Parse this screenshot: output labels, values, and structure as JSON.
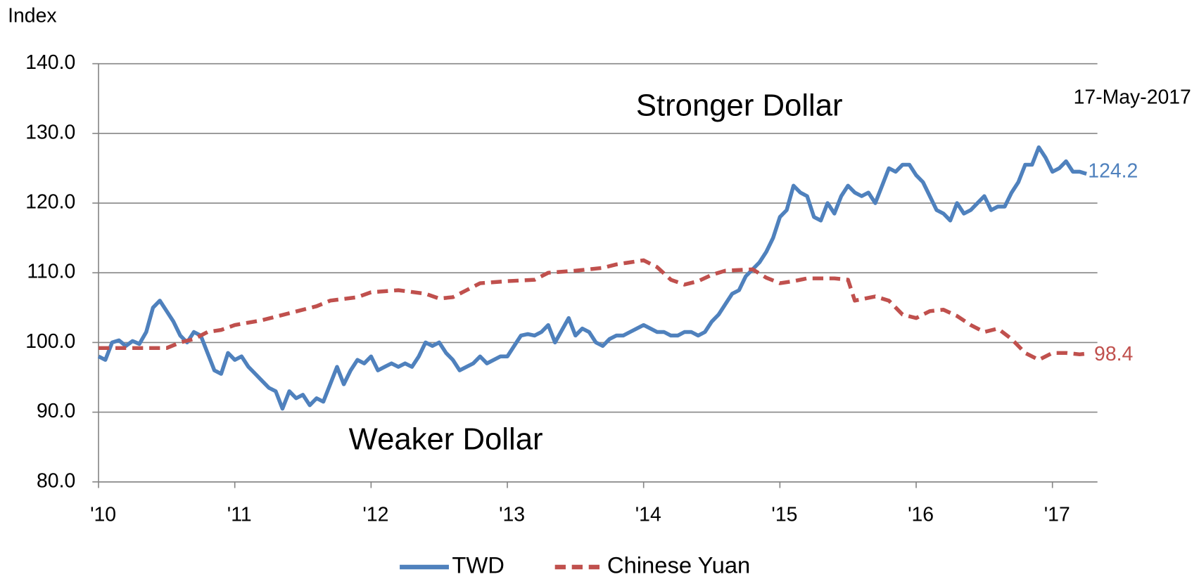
{
  "chart_data": {
    "type": "line",
    "y_label": "Index",
    "annotations": [
      "17-May-2017",
      "Stronger Dollar",
      "Weaker Dollar"
    ],
    "xlim": [
      2010,
      2017.33
    ],
    "xticks": [
      {
        "value": 2010,
        "label": "'10"
      },
      {
        "value": 2011,
        "label": "'11"
      },
      {
        "value": 2012,
        "label": "'12"
      },
      {
        "value": 2013,
        "label": "'13"
      },
      {
        "value": 2014,
        "label": "'14"
      },
      {
        "value": 2015,
        "label": "'15"
      },
      {
        "value": 2016,
        "label": "'16"
      },
      {
        "value": 2017,
        "label": "'17"
      }
    ],
    "ylim": [
      80,
      140
    ],
    "yticks": [
      {
        "value": 80,
        "label": "80.0"
      },
      {
        "value": 90,
        "label": "90.0"
      },
      {
        "value": 100,
        "label": "100.0"
      },
      {
        "value": 110,
        "label": "110.0"
      },
      {
        "value": 120,
        "label": "120.0"
      },
      {
        "value": 130,
        "label": "130.0"
      },
      {
        "value": 140,
        "label": "140.0"
      }
    ],
    "grid": true,
    "legend": "bottom",
    "series": [
      {
        "name": "TWD",
        "color": "#4f81bd",
        "dash": false,
        "x": [
          2010.0,
          2010.05,
          2010.1,
          2010.15,
          2010.2,
          2010.25,
          2010.3,
          2010.35,
          2010.4,
          2010.45,
          2010.5,
          2010.55,
          2010.6,
          2010.65,
          2010.7,
          2010.75,
          2010.8,
          2010.85,
          2010.9,
          2010.95,
          2011.0,
          2011.05,
          2011.1,
          2011.15,
          2011.2,
          2011.25,
          2011.3,
          2011.35,
          2011.4,
          2011.45,
          2011.5,
          2011.55,
          2011.6,
          2011.65,
          2011.7,
          2011.75,
          2011.8,
          2011.85,
          2011.9,
          2011.95,
          2012.0,
          2012.05,
          2012.1,
          2012.15,
          2012.2,
          2012.25,
          2012.3,
          2012.35,
          2012.4,
          2012.45,
          2012.5,
          2012.55,
          2012.6,
          2012.65,
          2012.7,
          2012.75,
          2012.8,
          2012.85,
          2012.9,
          2012.95,
          2013.0,
          2013.05,
          2013.1,
          2013.15,
          2013.2,
          2013.25,
          2013.3,
          2013.35,
          2013.45,
          2013.5,
          2013.55,
          2013.6,
          2013.65,
          2013.7,
          2013.75,
          2013.8,
          2013.85,
          2013.9,
          2013.95,
          2014.0,
          2014.05,
          2014.1,
          2014.15,
          2014.2,
          2014.25,
          2014.3,
          2014.35,
          2014.4,
          2014.45,
          2014.5,
          2014.55,
          2014.6,
          2014.65,
          2014.7,
          2014.75,
          2014.8,
          2014.85,
          2014.9,
          2014.95,
          2015.0,
          2015.05,
          2015.1,
          2015.15,
          2015.2,
          2015.25,
          2015.3,
          2015.35,
          2015.4,
          2015.45,
          2015.5,
          2015.55,
          2015.6,
          2015.65,
          2015.7,
          2015.75,
          2015.8,
          2015.85,
          2015.9,
          2015.95,
          2016.0,
          2016.05,
          2016.1,
          2016.15,
          2016.2,
          2016.25,
          2016.3,
          2016.35,
          2016.4,
          2016.45,
          2016.5,
          2016.55,
          2016.6,
          2016.65,
          2016.7,
          2016.75,
          2016.8,
          2016.85,
          2016.9,
          2016.95,
          2017.0,
          2017.05,
          2017.1,
          2017.15,
          2017.2,
          2017.25
        ],
        "values": [
          98,
          97.5,
          100,
          100.3,
          99.5,
          100.2,
          99.8,
          101.5,
          105,
          106,
          104.5,
          103,
          101,
          100,
          101.5,
          101,
          98.5,
          96,
          95.5,
          98.5,
          97.5,
          98,
          96.5,
          95.5,
          94.5,
          93.5,
          93,
          90.5,
          93,
          92,
          92.5,
          91,
          92,
          91.5,
          94,
          96.5,
          94,
          96,
          97.5,
          97,
          98,
          96,
          96.5,
          97,
          96.5,
          97,
          96.5,
          98,
          100,
          99.5,
          100,
          98.5,
          97.5,
          96,
          96.5,
          97,
          98,
          97,
          97.5,
          98,
          98,
          99.5,
          101,
          101.2,
          101,
          101.5,
          102.5,
          100,
          103.5,
          101,
          102,
          101.5,
          100,
          99.5,
          100.5,
          101,
          101,
          101.5,
          102,
          102.5,
          102,
          101.5,
          101.5,
          101,
          101,
          101.5,
          101.5,
          101,
          101.5,
          103,
          104,
          105.5,
          107,
          107.5,
          109.5,
          110.5,
          111.5,
          113,
          115,
          118,
          119,
          122.5,
          121.5,
          121,
          118,
          117.5,
          120,
          118.5,
          121,
          122.5,
          121.5,
          121,
          121.5,
          120,
          122.5,
          125,
          124.5,
          125.5,
          125.5,
          124,
          123,
          121,
          119,
          118.5,
          117.5,
          120,
          118.5,
          119,
          120,
          121,
          119,
          119.5,
          119.5,
          121.5,
          123,
          125.5,
          125.5,
          128,
          126.5,
          124.5,
          125,
          126,
          124.5,
          124.5,
          124.2
        ]
      },
      {
        "name": "Chinese Yuan",
        "color": "#c0504d",
        "dash": true,
        "x": [
          2010.0,
          2010.3,
          2010.5,
          2010.6,
          2010.7,
          2010.8,
          2010.9,
          2011.0,
          2011.2,
          2011.4,
          2011.6,
          2011.7,
          2011.9,
          2012.0,
          2012.2,
          2012.4,
          2012.5,
          2012.6,
          2012.7,
          2012.8,
          2013.0,
          2013.2,
          2013.3,
          2013.5,
          2013.7,
          2013.8,
          2014.0,
          2014.1,
          2014.2,
          2014.3,
          2014.4,
          2014.5,
          2014.6,
          2014.8,
          2014.9,
          2015.0,
          2015.1,
          2015.2,
          2015.4,
          2015.5,
          2015.55,
          2015.7,
          2015.8,
          2015.9,
          2016.0,
          2016.1,
          2016.2,
          2016.3,
          2016.4,
          2016.5,
          2016.6,
          2016.7,
          2016.8,
          2016.9,
          2017.0,
          2017.1,
          2017.2,
          2017.25
        ],
        "values": [
          99.2,
          99.2,
          99.2,
          100,
          100.5,
          101.5,
          101.8,
          102.5,
          103.2,
          104.2,
          105.2,
          106,
          106.5,
          107.2,
          107.5,
          107,
          106.3,
          106.5,
          107.5,
          108.5,
          108.8,
          109,
          110,
          110.3,
          110.7,
          111.2,
          111.8,
          110.8,
          109,
          108.3,
          108.8,
          109.7,
          110.3,
          110.5,
          109.3,
          108.5,
          108.8,
          109.2,
          109.2,
          109,
          106,
          106.6,
          106,
          104,
          103.5,
          104.5,
          104.7,
          103.8,
          102.5,
          101.5,
          102,
          100.5,
          98.5,
          97.5,
          98.5,
          98.5,
          98.3,
          98.4
        ]
      }
    ]
  }
}
